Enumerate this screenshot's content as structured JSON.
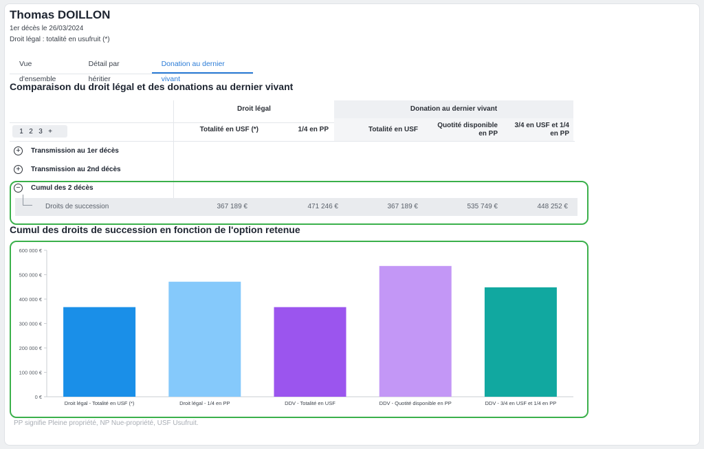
{
  "header": {
    "name": "Thomas DOILLON",
    "line1": "1er décès le 26/03/2024",
    "line2": "Droit légal : totalité en usufruit (*)"
  },
  "tabs": [
    {
      "label": "Vue d'ensemble"
    },
    {
      "label": "Détail par héritier"
    },
    {
      "label": "Donation au dernier vivant",
      "active": true
    }
  ],
  "section1": {
    "title": "Comparaison du droit légal et des donations au dernier vivant",
    "group_droit_legal": "Droit légal",
    "group_ddv": "Donation au dernier vivant",
    "columns": [
      "Totalité en USF (*)",
      "1/4 en PP",
      "Totalité en USF",
      "Quotité disponible en PP",
      "3/4 en USF et 1/4 en PP"
    ],
    "pager": [
      "1",
      "2",
      "3",
      "+"
    ],
    "rows": [
      {
        "icon": "plus",
        "label": "Transmission au 1er décès"
      },
      {
        "icon": "plus",
        "label": "Transmission au 2nd décès"
      },
      {
        "icon": "minus",
        "label": "Cumul des 2 décès"
      }
    ],
    "subrow": {
      "label": "Droits de succession",
      "values": [
        "367 189 €",
        "471 246 €",
        "367 189 €",
        "535 749 €",
        "448 252 €"
      ]
    }
  },
  "section2": {
    "title": "Cumul des droits de succession en fonction de l'option retenue"
  },
  "chart_data": {
    "type": "bar",
    "categories": [
      "Droit légal - Totalité en USF (*)",
      "Droit légal - 1/4 en PP",
      "DDV - Totalité en USF",
      "DDV - Quotité disponible en PP",
      "DDV - 3/4 en USF et 1/4 en PP"
    ],
    "values": [
      367189,
      471246,
      367189,
      535749,
      448252
    ],
    "colors": [
      "#1a8fe8",
      "#85c9fb",
      "#9b55ee",
      "#c397f6",
      "#11a8a0"
    ],
    "yticks": [
      "0 €",
      "100 000 €",
      "200 000 €",
      "300 000 €",
      "400 000 €",
      "500 000 €",
      "600 000 €"
    ],
    "ylim": [
      0,
      600000
    ],
    "grid": false
  },
  "footnote": "PP signifie Pleine propriété, NP Nue-propriété, USF Usufruit."
}
